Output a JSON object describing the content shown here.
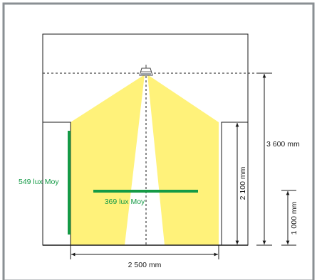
{
  "colors": {
    "outer_border": "#8a8f93",
    "line": "#1a1a1a",
    "beam": "#fff27a",
    "measure": "#149a46"
  },
  "icons": {
    "luminaire": "pendant-light-icon"
  },
  "labels": {
    "ceiling_height": "3 600 mm",
    "shelf_height": "2 100 mm",
    "measure_height": "1 000 mm",
    "aisle_width": "2 500 mm",
    "vertical_lux": "549 lux Moy",
    "horizontal_lux": "369 lux Moy"
  }
}
